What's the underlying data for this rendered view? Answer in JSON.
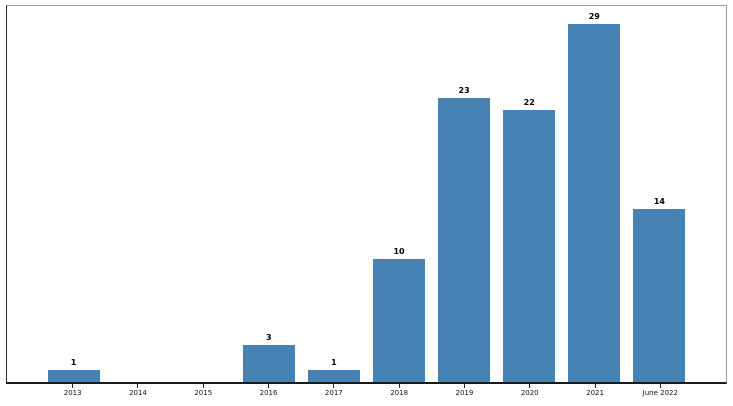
{
  "figure": {
    "background_color": "#ffffff",
    "spine_color_top_right": "#9b9b9b",
    "spine_color_left_bottom": "#1a1a1a"
  },
  "chart_data": {
    "type": "bar",
    "title": "",
    "xlabel": "",
    "ylabel": "",
    "categories": [
      "2013",
      "2014",
      "2015",
      "2016",
      "2017",
      "2018",
      "2019",
      "2020",
      "2021",
      "June 2022"
    ],
    "values": [
      1,
      0,
      0,
      3,
      1,
      10,
      23,
      22,
      29,
      14
    ],
    "bar_color": "#4682b4",
    "ylim": [
      0,
      30.45
    ],
    "grid": false,
    "legend_position": "none",
    "value_labels": "bold, above each bar, hidden when value is 0",
    "y_axis_ticks": "none"
  }
}
